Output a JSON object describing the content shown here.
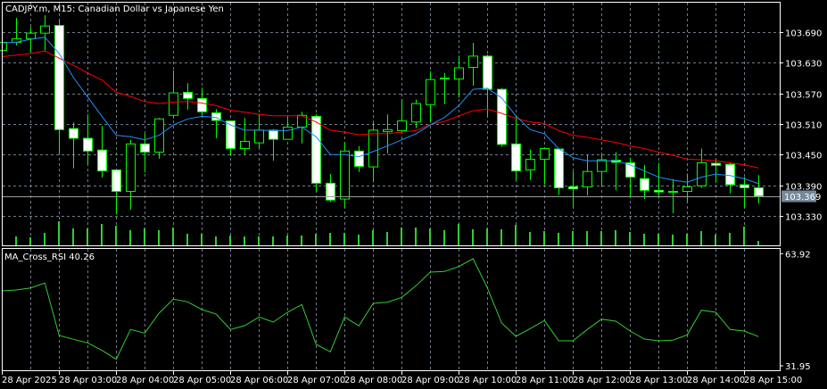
{
  "chart_title": "CADJPY.m, M15:  Canadian Dollar vs Japanese Yen",
  "indicator_label": "MA_Cross_RSI 40.26",
  "current_price_label": "103.369",
  "colors": {
    "background": "#000000",
    "bull_candle_fill": "#000000",
    "bear_candle_fill": "#ffffff",
    "candle_outline": "#00ff00",
    "volume": "#32cd32",
    "fast_ma": "#1e90ff",
    "slow_ma": "#ff0000",
    "rsi": "#32cd32",
    "grid": "#6e7b8b",
    "price_tag": "#778899"
  },
  "chart_data": [
    {
      "type": "candlestick",
      "title": "CADJPY.m, M15:  Canadian Dollar vs Japanese Yen",
      "ylim": [
        103.3,
        103.75
      ],
      "grid": true,
      "y_ticks": [
        "103.690",
        "103.630",
        "103.570",
        "103.510",
        "103.450",
        "103.390",
        "103.330"
      ],
      "x_ticks": [
        "28 Apr 2025",
        "28 Apr 03:00",
        "28 Apr 04:00",
        "28 Apr 05:00",
        "28 Apr 06:00",
        "28 Apr 07:00",
        "28 Apr 08:00",
        "28 Apr 09:00",
        "28 Apr 10:00",
        "28 Apr 11:00",
        "28 Apr 12:00",
        "28 Apr 13:00",
        "28 Apr 14:00",
        "28 Apr 15:00"
      ],
      "current_price": 103.369,
      "ohlc": [
        [
          103.654,
          103.672,
          103.652,
          103.67
        ],
        [
          103.67,
          103.718,
          103.664,
          103.677
        ],
        [
          103.677,
          103.7,
          103.651,
          103.688
        ],
        [
          103.688,
          103.723,
          103.654,
          103.702
        ],
        [
          103.703,
          103.715,
          103.452,
          103.499
        ],
        [
          103.501,
          103.513,
          103.423,
          103.482
        ],
        [
          103.482,
          103.529,
          103.43,
          103.457
        ],
        [
          103.459,
          103.506,
          103.405,
          103.418
        ],
        [
          103.42,
          103.42,
          103.333,
          103.378
        ],
        [
          103.378,
          103.479,
          103.342,
          103.471
        ],
        [
          103.471,
          103.491,
          103.415,
          103.455
        ],
        [
          103.455,
          103.522,
          103.442,
          103.52
        ],
        [
          103.527,
          103.615,
          103.521,
          103.571
        ],
        [
          103.572,
          103.59,
          103.538,
          103.56
        ],
        [
          103.56,
          103.581,
          103.527,
          103.534
        ],
        [
          103.532,
          103.539,
          103.482,
          103.517
        ],
        [
          103.516,
          103.516,
          103.447,
          103.462
        ],
        [
          103.462,
          103.522,
          103.45,
          103.476
        ],
        [
          103.473,
          103.53,
          103.463,
          103.498
        ],
        [
          103.498,
          103.5,
          103.438,
          103.48
        ],
        [
          103.48,
          103.524,
          103.48,
          103.504
        ],
        [
          103.504,
          103.534,
          103.472,
          103.527
        ],
        [
          103.525,
          103.529,
          103.377,
          103.394
        ],
        [
          103.394,
          103.412,
          103.357,
          103.361
        ],
        [
          103.363,
          103.475,
          103.346,
          103.457
        ],
        [
          103.457,
          103.467,
          103.416,
          103.427
        ],
        [
          103.426,
          103.513,
          103.396,
          103.498
        ],
        [
          103.495,
          103.529,
          103.452,
          103.499
        ],
        [
          103.497,
          103.559,
          103.495,
          103.516
        ],
        [
          103.514,
          103.558,
          103.502,
          103.55
        ],
        [
          103.548,
          103.613,
          103.514,
          103.597
        ],
        [
          103.598,
          103.61,
          103.549,
          103.6
        ],
        [
          103.598,
          103.644,
          103.561,
          103.62
        ],
        [
          103.621,
          103.669,
          103.585,
          103.643
        ],
        [
          103.643,
          103.646,
          103.524,
          103.578
        ],
        [
          103.578,
          103.58,
          103.465,
          103.47
        ],
        [
          103.471,
          103.526,
          103.399,
          103.418
        ],
        [
          103.42,
          103.46,
          103.4,
          103.441
        ],
        [
          103.441,
          103.464,
          103.392,
          103.462
        ],
        [
          103.461,
          103.461,
          103.371,
          103.385
        ],
        [
          103.387,
          103.417,
          103.347,
          103.383
        ],
        [
          103.387,
          103.45,
          103.37,
          103.417
        ],
        [
          103.417,
          103.45,
          103.389,
          103.44
        ],
        [
          103.439,
          103.455,
          103.38,
          103.435
        ],
        [
          103.434,
          103.444,
          103.365,
          103.406
        ],
        [
          103.403,
          103.43,
          103.363,
          103.38
        ],
        [
          103.38,
          103.434,
          103.364,
          103.377
        ],
        [
          103.378,
          103.402,
          103.335,
          103.377
        ],
        [
          103.378,
          103.413,
          103.357,
          103.387
        ],
        [
          103.389,
          103.462,
          103.385,
          103.434
        ],
        [
          103.433,
          103.44,
          103.395,
          103.429
        ],
        [
          103.431,
          103.433,
          103.374,
          103.391
        ],
        [
          103.391,
          103.406,
          103.346,
          103.385
        ],
        [
          103.385,
          103.41,
          103.354,
          103.369
        ]
      ],
      "fast_ma": [
        103.669,
        103.67,
        103.676,
        103.68,
        103.648,
        103.601,
        103.563,
        103.525,
        103.488,
        103.485,
        103.479,
        103.488,
        103.508,
        103.52,
        103.525,
        103.523,
        103.508,
        103.498,
        103.498,
        103.497,
        103.497,
        103.504,
        103.485,
        103.45,
        103.45,
        103.446,
        103.456,
        103.467,
        103.479,
        103.491,
        103.508,
        103.523,
        103.546,
        103.578,
        103.58,
        103.561,
        103.526,
        103.499,
        103.491,
        103.462,
        103.444,
        103.438,
        103.438,
        103.438,
        103.43,
        103.418,
        103.406,
        103.4,
        103.396,
        103.406,
        103.412,
        103.409,
        103.403,
        103.393
      ],
      "slow_ma": [
        103.642,
        103.645,
        103.648,
        103.653,
        103.639,
        103.625,
        103.61,
        103.596,
        103.572,
        103.564,
        103.554,
        103.55,
        103.553,
        103.554,
        103.551,
        103.546,
        103.537,
        103.533,
        103.529,
        103.526,
        103.526,
        103.526,
        103.514,
        103.498,
        103.494,
        103.489,
        103.491,
        103.491,
        103.494,
        103.497,
        103.509,
        103.515,
        103.526,
        103.536,
        103.539,
        103.531,
        103.521,
        103.514,
        103.511,
        103.497,
        103.488,
        103.484,
        103.479,
        103.474,
        103.467,
        103.462,
        103.455,
        103.449,
        103.441,
        103.44,
        103.438,
        103.434,
        103.43,
        103.424
      ],
      "volume_relative": [
        0,
        11,
        10,
        15,
        28,
        20,
        20,
        25,
        23,
        18,
        20,
        18,
        21,
        14,
        14,
        11,
        12,
        11,
        11,
        11,
        12,
        12,
        14,
        15,
        15,
        13,
        18,
        16,
        21,
        21,
        20,
        18,
        25,
        19,
        20,
        19,
        24,
        16,
        17,
        15,
        17,
        17,
        17,
        18,
        16,
        14,
        14,
        13,
        14,
        17,
        13,
        15,
        22,
        6
      ]
    },
    {
      "type": "line",
      "title": "MA_Cross_RSI 40.26",
      "ylim": [
        31.95,
        63.92
      ],
      "y_ticks": [
        "63.92",
        "31.95"
      ],
      "values": [
        53.31,
        53.57,
        54.15,
        55.52,
        40.6,
        39.5,
        38.49,
        36.35,
        33.81,
        42.3,
        41.28,
        46.95,
        50.95,
        50.18,
        47.97,
        46.7,
        42.3,
        43.39,
        45.86,
        44.41,
        47.21,
        49.42,
        38.05,
        35.94,
        45.86,
        43.32,
        49.75,
        50.08,
        51.45,
        54.76,
        58.65,
        58.83,
        60.25,
        62.47,
        54.15,
        44.16,
        40.34,
        42.55,
        44.84,
        39.07,
        39.07,
        42.3,
        45.25,
        44.67,
        41.87,
        39.58,
        39.07,
        39.25,
        40.77,
        47.79,
        47.21,
        42.3,
        41.87,
        40.26
      ]
    }
  ]
}
